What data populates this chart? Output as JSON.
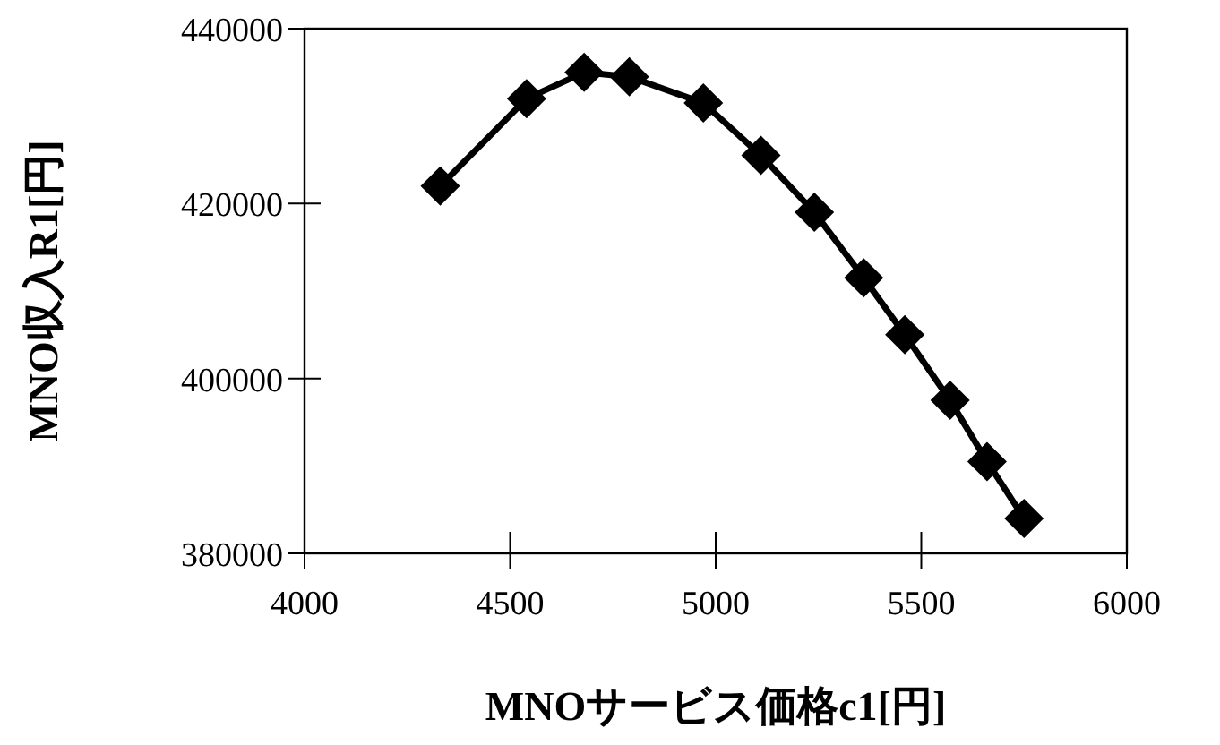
{
  "chart_data": {
    "type": "line",
    "xlabel": "MNOサービス価格c1[円]",
    "ylabel": "MNO収入R1[円]",
    "x": [
      4330,
      4540,
      4680,
      4790,
      4970,
      5110,
      5240,
      5360,
      5460,
      5570,
      5660,
      5750
    ],
    "series": [
      {
        "color": "#000000",
        "values": [
          422000,
          432000,
          435000,
          434500,
          431500,
          425500,
          419000,
          411500,
          405000,
          397500,
          390500,
          384000
        ]
      }
    ],
    "xlim": [
      4000,
      6000
    ],
    "xticks": [
      4000,
      4500,
      5000,
      5500,
      6000
    ],
    "ylim": [
      380000,
      440000
    ],
    "yticks": [
      380000,
      400000,
      420000,
      440000
    ],
    "marker": "diamond",
    "line_style": "solid"
  }
}
